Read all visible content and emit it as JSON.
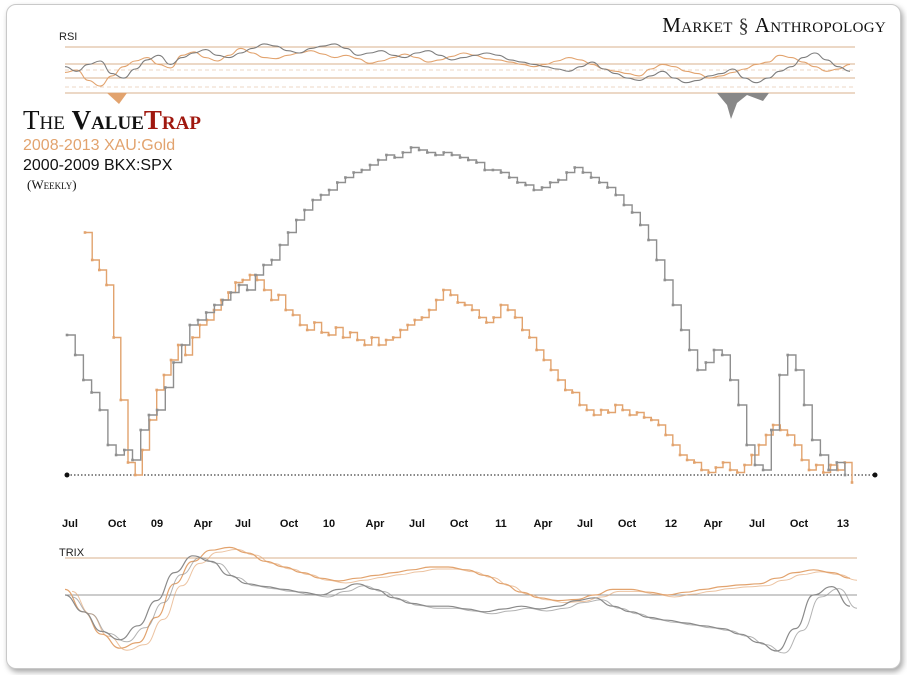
{
  "brand": {
    "left": "Market",
    "right": "Anthropology",
    "icon": "dna-icon"
  },
  "title": {
    "the": "The",
    "value": "Value",
    "trap": "Trap"
  },
  "subtitle_gold": "2008-2013 XAU:Gold",
  "subtitle_bank": "2000-2009 BKX:SPX",
  "subtitle_weekly": "(Weekly)",
  "colors": {
    "gold": "#e2a36e",
    "bank": "#8f8f8f",
    "title_red": "#a0180f",
    "rsi_band": "#d9b08c"
  },
  "chart_data": [
    {
      "type": "line",
      "panel": "rsi",
      "title": "RSI",
      "grid": false,
      "series": [
        {
          "name": "XAU:Gold",
          "values": [
            45,
            47,
            38,
            33,
            42,
            50,
            55,
            58,
            52,
            49,
            60,
            63,
            58,
            55,
            60,
            66,
            62,
            58,
            57,
            60,
            62,
            64,
            61,
            58,
            60,
            57,
            53,
            55,
            58,
            61,
            58,
            54,
            56,
            59,
            62,
            60,
            57,
            56,
            54,
            52,
            50,
            52,
            55,
            58,
            56,
            52,
            48,
            46,
            44,
            42,
            48,
            52,
            50,
            46,
            44,
            40,
            42,
            45,
            48,
            52,
            54,
            60,
            58,
            54,
            50,
            46,
            48,
            52
          ]
        },
        {
          "name": "BKX:SPX",
          "values": [
            50,
            46,
            52,
            55,
            44,
            40,
            48,
            56,
            60,
            52,
            58,
            62,
            65,
            60,
            58,
            62,
            66,
            70,
            68,
            64,
            62,
            66,
            68,
            70,
            66,
            60,
            62,
            64,
            60,
            58,
            62,
            64,
            60,
            56,
            58,
            60,
            62,
            60,
            56,
            54,
            52,
            50,
            48,
            46,
            50,
            54,
            48,
            44,
            40,
            38,
            42,
            46,
            40,
            36,
            38,
            42,
            44,
            48,
            40,
            36,
            40,
            46,
            50,
            58,
            62,
            56,
            50,
            46
          ]
        }
      ]
    },
    {
      "type": "line",
      "panel": "main",
      "x_ticks": [
        "Jul",
        "Oct",
        "09",
        "Apr",
        "Jul",
        "Oct",
        "10",
        "Apr",
        "Jul",
        "Oct",
        "11",
        "Apr",
        "Jul",
        "Oct",
        "12",
        "Apr",
        "Jul",
        "Oct",
        "13"
      ],
      "reference_line": "horizontal dotted support",
      "series": [
        {
          "name": "XAU:Gold",
          "values": [
            0.97,
            0.86,
            0.82,
            0.76,
            0.55,
            0.3,
            0.05,
            0.0,
            0.1,
            0.22,
            0.34,
            0.4,
            0.46,
            0.52,
            0.48,
            0.55,
            0.6,
            0.62,
            0.66,
            0.7,
            0.73,
            0.77,
            0.78,
            0.8,
            0.78,
            0.74,
            0.7,
            0.72,
            0.66,
            0.64,
            0.6,
            0.58,
            0.61,
            0.57,
            0.56,
            0.59,
            0.55,
            0.57,
            0.54,
            0.52,
            0.55,
            0.52,
            0.54,
            0.55,
            0.58,
            0.6,
            0.62,
            0.63,
            0.66,
            0.7,
            0.74,
            0.72,
            0.69,
            0.68,
            0.66,
            0.63,
            0.61,
            0.63,
            0.68,
            0.66,
            0.63,
            0.58,
            0.55,
            0.5,
            0.46,
            0.42,
            0.38,
            0.34,
            0.33,
            0.28,
            0.26,
            0.24,
            0.26,
            0.25,
            0.28,
            0.26,
            0.24,
            0.25,
            0.23,
            0.22,
            0.2,
            0.16,
            0.12,
            0.08,
            0.06,
            0.05,
            0.02,
            0.01,
            0.03,
            0.05,
            0.02,
            0.01,
            0.04,
            0.08,
            0.12,
            0.16,
            0.2,
            0.18,
            0.16,
            0.12,
            0.06,
            0.02,
            0.04,
            0.01,
            0.04,
            0.02,
            0.05,
            -0.03
          ]
        },
        {
          "name": "BKX:SPX",
          "values": [
            0.56,
            0.48,
            0.38,
            0.33,
            0.26,
            0.12,
            0.08,
            0.1,
            0.06,
            0.18,
            0.24,
            0.26,
            0.35,
            0.45,
            0.52,
            0.6,
            0.62,
            0.65,
            0.68,
            0.7,
            0.73,
            0.76,
            0.74,
            0.8,
            0.84,
            0.86,
            0.92,
            0.97,
            1.02,
            1.06,
            1.1,
            1.12,
            1.14,
            1.17,
            1.19,
            1.21,
            1.22,
            1.24,
            1.26,
            1.28,
            1.27,
            1.29,
            1.31,
            1.3,
            1.29,
            1.28,
            1.29,
            1.28,
            1.27,
            1.26,
            1.25,
            1.22,
            1.22,
            1.21,
            1.19,
            1.17,
            1.16,
            1.14,
            1.15,
            1.17,
            1.18,
            1.21,
            1.23,
            1.21,
            1.19,
            1.17,
            1.15,
            1.12,
            1.08,
            1.05,
            1.0,
            0.94,
            0.86,
            0.78,
            0.68,
            0.58,
            0.5,
            0.42,
            0.45,
            0.5,
            0.48,
            0.38,
            0.28,
            0.12,
            0.04,
            0.02,
            0.18,
            0.4,
            0.48,
            0.42,
            0.28,
            0.14,
            0.08,
            0.02,
            0.05,
            0.0
          ]
        }
      ]
    },
    {
      "type": "line",
      "panel": "trix",
      "title": "TRIX",
      "grid": false,
      "series": [
        {
          "name": "XAU:Gold",
          "values": [
            0.1,
            -0.3,
            -0.7,
            -0.95,
            -0.85,
            -0.4,
            0.2,
            0.6,
            0.8,
            0.85,
            0.75,
            0.6,
            0.5,
            0.4,
            0.3,
            0.25,
            0.3,
            0.35,
            0.4,
            0.45,
            0.5,
            0.5,
            0.45,
            0.35,
            0.2,
            0.05,
            -0.05,
            -0.1,
            -0.08,
            0.0,
            0.1,
            0.1,
            0.05,
            0.0,
            0.05,
            0.1,
            0.15,
            0.18,
            0.2,
            0.3,
            0.4,
            0.45,
            0.4,
            0.3
          ]
        },
        {
          "name": "BKX:SPX",
          "values": [
            0.0,
            -0.3,
            -0.65,
            -0.8,
            -0.55,
            -0.1,
            0.4,
            0.7,
            0.6,
            0.35,
            0.2,
            0.15,
            0.1,
            0.05,
            0.0,
            0.1,
            0.2,
            0.1,
            -0.05,
            -0.15,
            -0.2,
            -0.2,
            -0.25,
            -0.3,
            -0.25,
            -0.2,
            -0.25,
            -0.2,
            -0.1,
            -0.05,
            -0.2,
            -0.3,
            -0.4,
            -0.45,
            -0.5,
            -0.55,
            -0.6,
            -0.7,
            -0.85,
            -1.0,
            -0.6,
            0.0,
            0.15,
            -0.2
          ]
        }
      ]
    }
  ]
}
